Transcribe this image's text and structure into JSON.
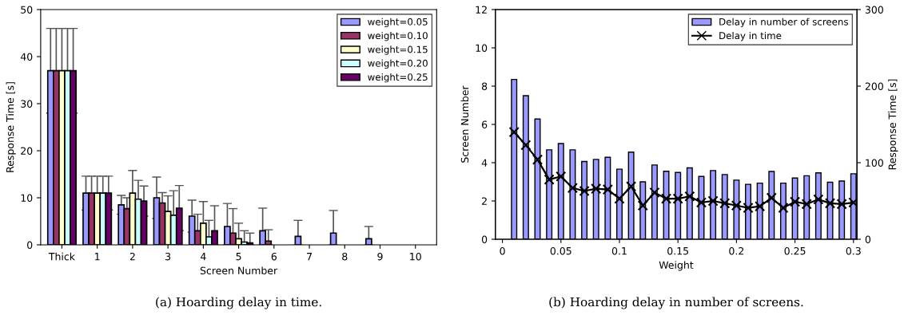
{
  "chart_data": [
    {
      "type": "bar",
      "xlabel": "Screen Number",
      "ylabel": "Response Time [s]",
      "annotations": [
        "(a) Hoarding delay in time."
      ],
      "categories": [
        "Thick",
        "1",
        "2",
        "3",
        "4",
        "5",
        "6",
        "7",
        "8",
        "9",
        "10"
      ],
      "ylim": [
        0,
        50
      ],
      "yticks": [
        0,
        10,
        20,
        30,
        40,
        50
      ],
      "legend": "top right",
      "grid": false,
      "series": [
        {
          "name": "weight=0.05",
          "color": "#9999ff",
          "values": [
            37,
            11,
            8.5,
            10.0,
            6.1,
            3.9,
            3.0,
            1.8,
            2.5,
            1.3,
            null
          ],
          "errors": [
            [
              28,
              46
            ],
            [
              7.4,
              14.6
            ],
            [
              6.5,
              10.5
            ],
            [
              5.6,
              14.4
            ],
            [
              2.7,
              9.5
            ],
            [
              0,
              8.8
            ],
            [
              0,
              7.8
            ],
            [
              0,
              5.2
            ],
            [
              0,
              7.3
            ],
            [
              0,
              3.9
            ],
            null
          ]
        },
        {
          "name": "weight=0.10",
          "color": "#993366",
          "values": [
            37,
            11,
            7.7,
            8.9,
            3.0,
            2.5,
            0.8,
            null,
            null,
            null,
            null
          ],
          "errors": [
            [
              28,
              46
            ],
            [
              7.4,
              14.6
            ],
            [
              5.4,
              10.0
            ],
            [
              6.7,
              11.1
            ],
            [
              0,
              6.5
            ],
            [
              0,
              7.7
            ],
            [
              0,
              3.2
            ],
            null,
            null,
            null,
            null
          ]
        },
        {
          "name": "weight=0.15",
          "color": "#ffffcc",
          "values": [
            37,
            11,
            11.0,
            7.1,
            4.6,
            1.3,
            null,
            null,
            null,
            null,
            null
          ],
          "errors": [
            [
              28,
              46
            ],
            [
              7.4,
              14.6
            ],
            [
              6.2,
              15.8
            ],
            [
              3.8,
              10.4
            ],
            [
              0,
              9.2
            ],
            [
              0,
              4.6
            ],
            null,
            null,
            null,
            null,
            null
          ]
        },
        {
          "name": "weight=0.20",
          "color": "#ccffff",
          "values": [
            37,
            11,
            9.7,
            6.3,
            1.7,
            0.6,
            null,
            null,
            null,
            null,
            null
          ],
          "errors": [
            [
              28,
              46
            ],
            [
              7.4,
              14.6
            ],
            [
              5.7,
              13.7
            ],
            [
              1.1,
              11.5
            ],
            [
              0,
              5.2
            ],
            [
              0,
              3.0
            ],
            null,
            null,
            null,
            null,
            null
          ]
        },
        {
          "name": "weight=0.25",
          "color": "#660066",
          "values": [
            37,
            11,
            9.3,
            7.8,
            3.0,
            0.4,
            null,
            null,
            null,
            null,
            null
          ],
          "errors": [
            [
              28,
              46
            ],
            [
              7.4,
              14.6
            ],
            [
              6.1,
              12.5
            ],
            [
              3.0,
              12.6
            ],
            [
              0,
              8.3
            ],
            [
              0,
              2.5
            ],
            null,
            null,
            null,
            null,
            null
          ]
        }
      ]
    },
    {
      "type": "bar",
      "xlabel": "Weight",
      "ylabel": "Screen Number",
      "y2label": "Response Time [s]",
      "annotations": [
        "(b) Hoarding delay in number of screens."
      ],
      "x": [
        0.01,
        0.02,
        0.03,
        0.04,
        0.05,
        0.06,
        0.07,
        0.08,
        0.09,
        0.1,
        0.11,
        0.12,
        0.13,
        0.14,
        0.15,
        0.16,
        0.17,
        0.18,
        0.19,
        0.2,
        0.21,
        0.22,
        0.23,
        0.24,
        0.25,
        0.26,
        0.27,
        0.28,
        0.29,
        0.3
      ],
      "xlim": [
        -0.006,
        0.303
      ],
      "xticks": [
        0,
        {
          "value": 0.05,
          "label": "0.05"
        },
        {
          "value": 0.1,
          "label": "0.1"
        },
        {
          "value": 0.15,
          "label": "0.15"
        },
        {
          "value": 0.2,
          "label": "0.2"
        },
        {
          "value": 0.25,
          "label": "0.25"
        },
        {
          "value": 0.3,
          "label": "0.3"
        }
      ],
      "ylim": [
        0,
        12
      ],
      "yticks": [
        0,
        2,
        4,
        6,
        8,
        10,
        12
      ],
      "y2lim": [
        0,
        300
      ],
      "y2ticks": [
        0,
        100,
        200,
        300
      ],
      "legend": "top right",
      "grid": false,
      "series": [
        {
          "name": "Delay in number of screens",
          "type": "bar",
          "color": "#9999ff",
          "values": [
            8.35,
            7.5,
            6.28,
            4.67,
            5.0,
            4.67,
            4.06,
            4.17,
            4.28,
            3.66,
            4.55,
            3.0,
            3.88,
            3.55,
            3.49,
            3.73,
            3.28,
            3.59,
            3.38,
            3.09,
            2.87,
            2.93,
            3.54,
            2.93,
            3.2,
            3.32,
            3.47,
            2.98,
            3.04,
            3.42
          ]
        },
        {
          "name": "Delay in time",
          "type": "line",
          "axis": "y2",
          "color": "#000000",
          "marker": "cross",
          "line_style": "solid",
          "values": [
            140,
            123,
            104,
            78,
            82,
            67,
            63,
            66,
            65,
            53,
            69,
            44,
            61,
            53,
            53,
            56,
            48,
            50,
            47,
            44,
            41,
            43,
            54,
            41,
            49,
            46,
            52,
            47,
            46,
            48
          ]
        }
      ]
    }
  ]
}
